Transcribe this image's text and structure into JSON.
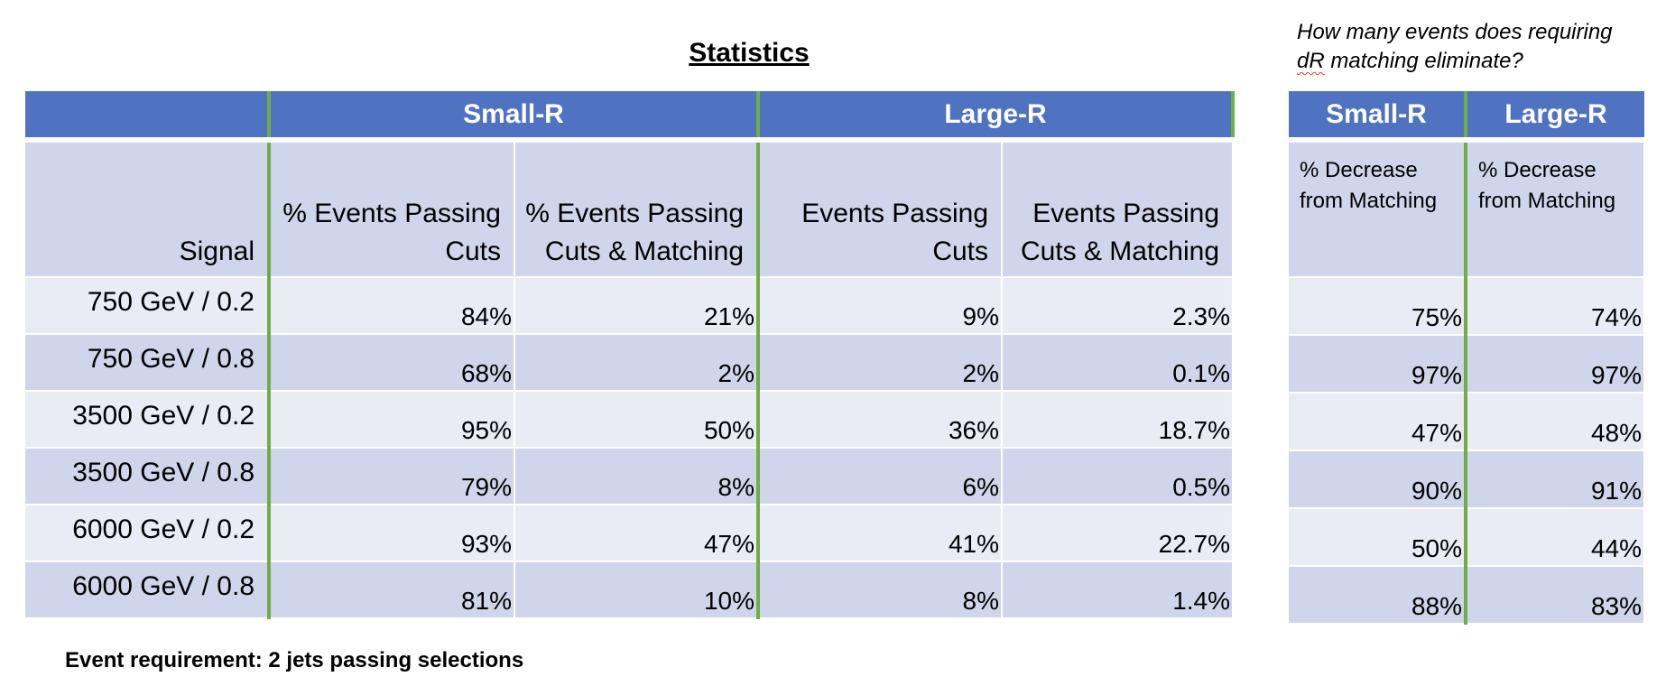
{
  "title": "Statistics",
  "question": {
    "before": "How many events does requiring",
    "dr": "dR",
    "after": "matching eliminate?"
  },
  "main_table": {
    "group_headers": [
      "Small-R",
      "Large-R"
    ],
    "col_headers": [
      "Signal",
      "% Events Passing Cuts",
      "% Events Passing Cuts & Matching",
      "Events Passing Cuts",
      "Events Passing Cuts & Matching"
    ],
    "rows": [
      [
        "750 GeV / 0.2",
        "84%",
        "21%",
        "9%",
        "2.3%"
      ],
      [
        "750 GeV / 0.8",
        "68%",
        "2%",
        "2%",
        "0.1%"
      ],
      [
        "3500 GeV / 0.2",
        "95%",
        "50%",
        "36%",
        "18.7%"
      ],
      [
        "3500 GeV / 0.8",
        "79%",
        "8%",
        "6%",
        "0.5%"
      ],
      [
        "6000 GeV / 0.2",
        "93%",
        "47%",
        "41%",
        "22.7%"
      ],
      [
        "6000 GeV / 0.8",
        "81%",
        "10%",
        "8%",
        "1.4%"
      ]
    ]
  },
  "side_table": {
    "group_headers": [
      "Small-R",
      "Large-R"
    ],
    "col_headers": [
      "% Decrease from Matching",
      "% Decrease from Matching"
    ],
    "rows": [
      [
        "75%",
        "74%"
      ],
      [
        "97%",
        "97%"
      ],
      [
        "47%",
        "48%"
      ],
      [
        "90%",
        "91%"
      ],
      [
        "50%",
        "44%"
      ],
      [
        "88%",
        "83%"
      ]
    ]
  },
  "footnote": "Event requirement: 2 jets passing selections",
  "colors": {
    "header_blue": "#4f73c0",
    "row_dark": "#cfd5ea",
    "row_light": "#e9ebf5",
    "divider_green": "#70ad47"
  }
}
